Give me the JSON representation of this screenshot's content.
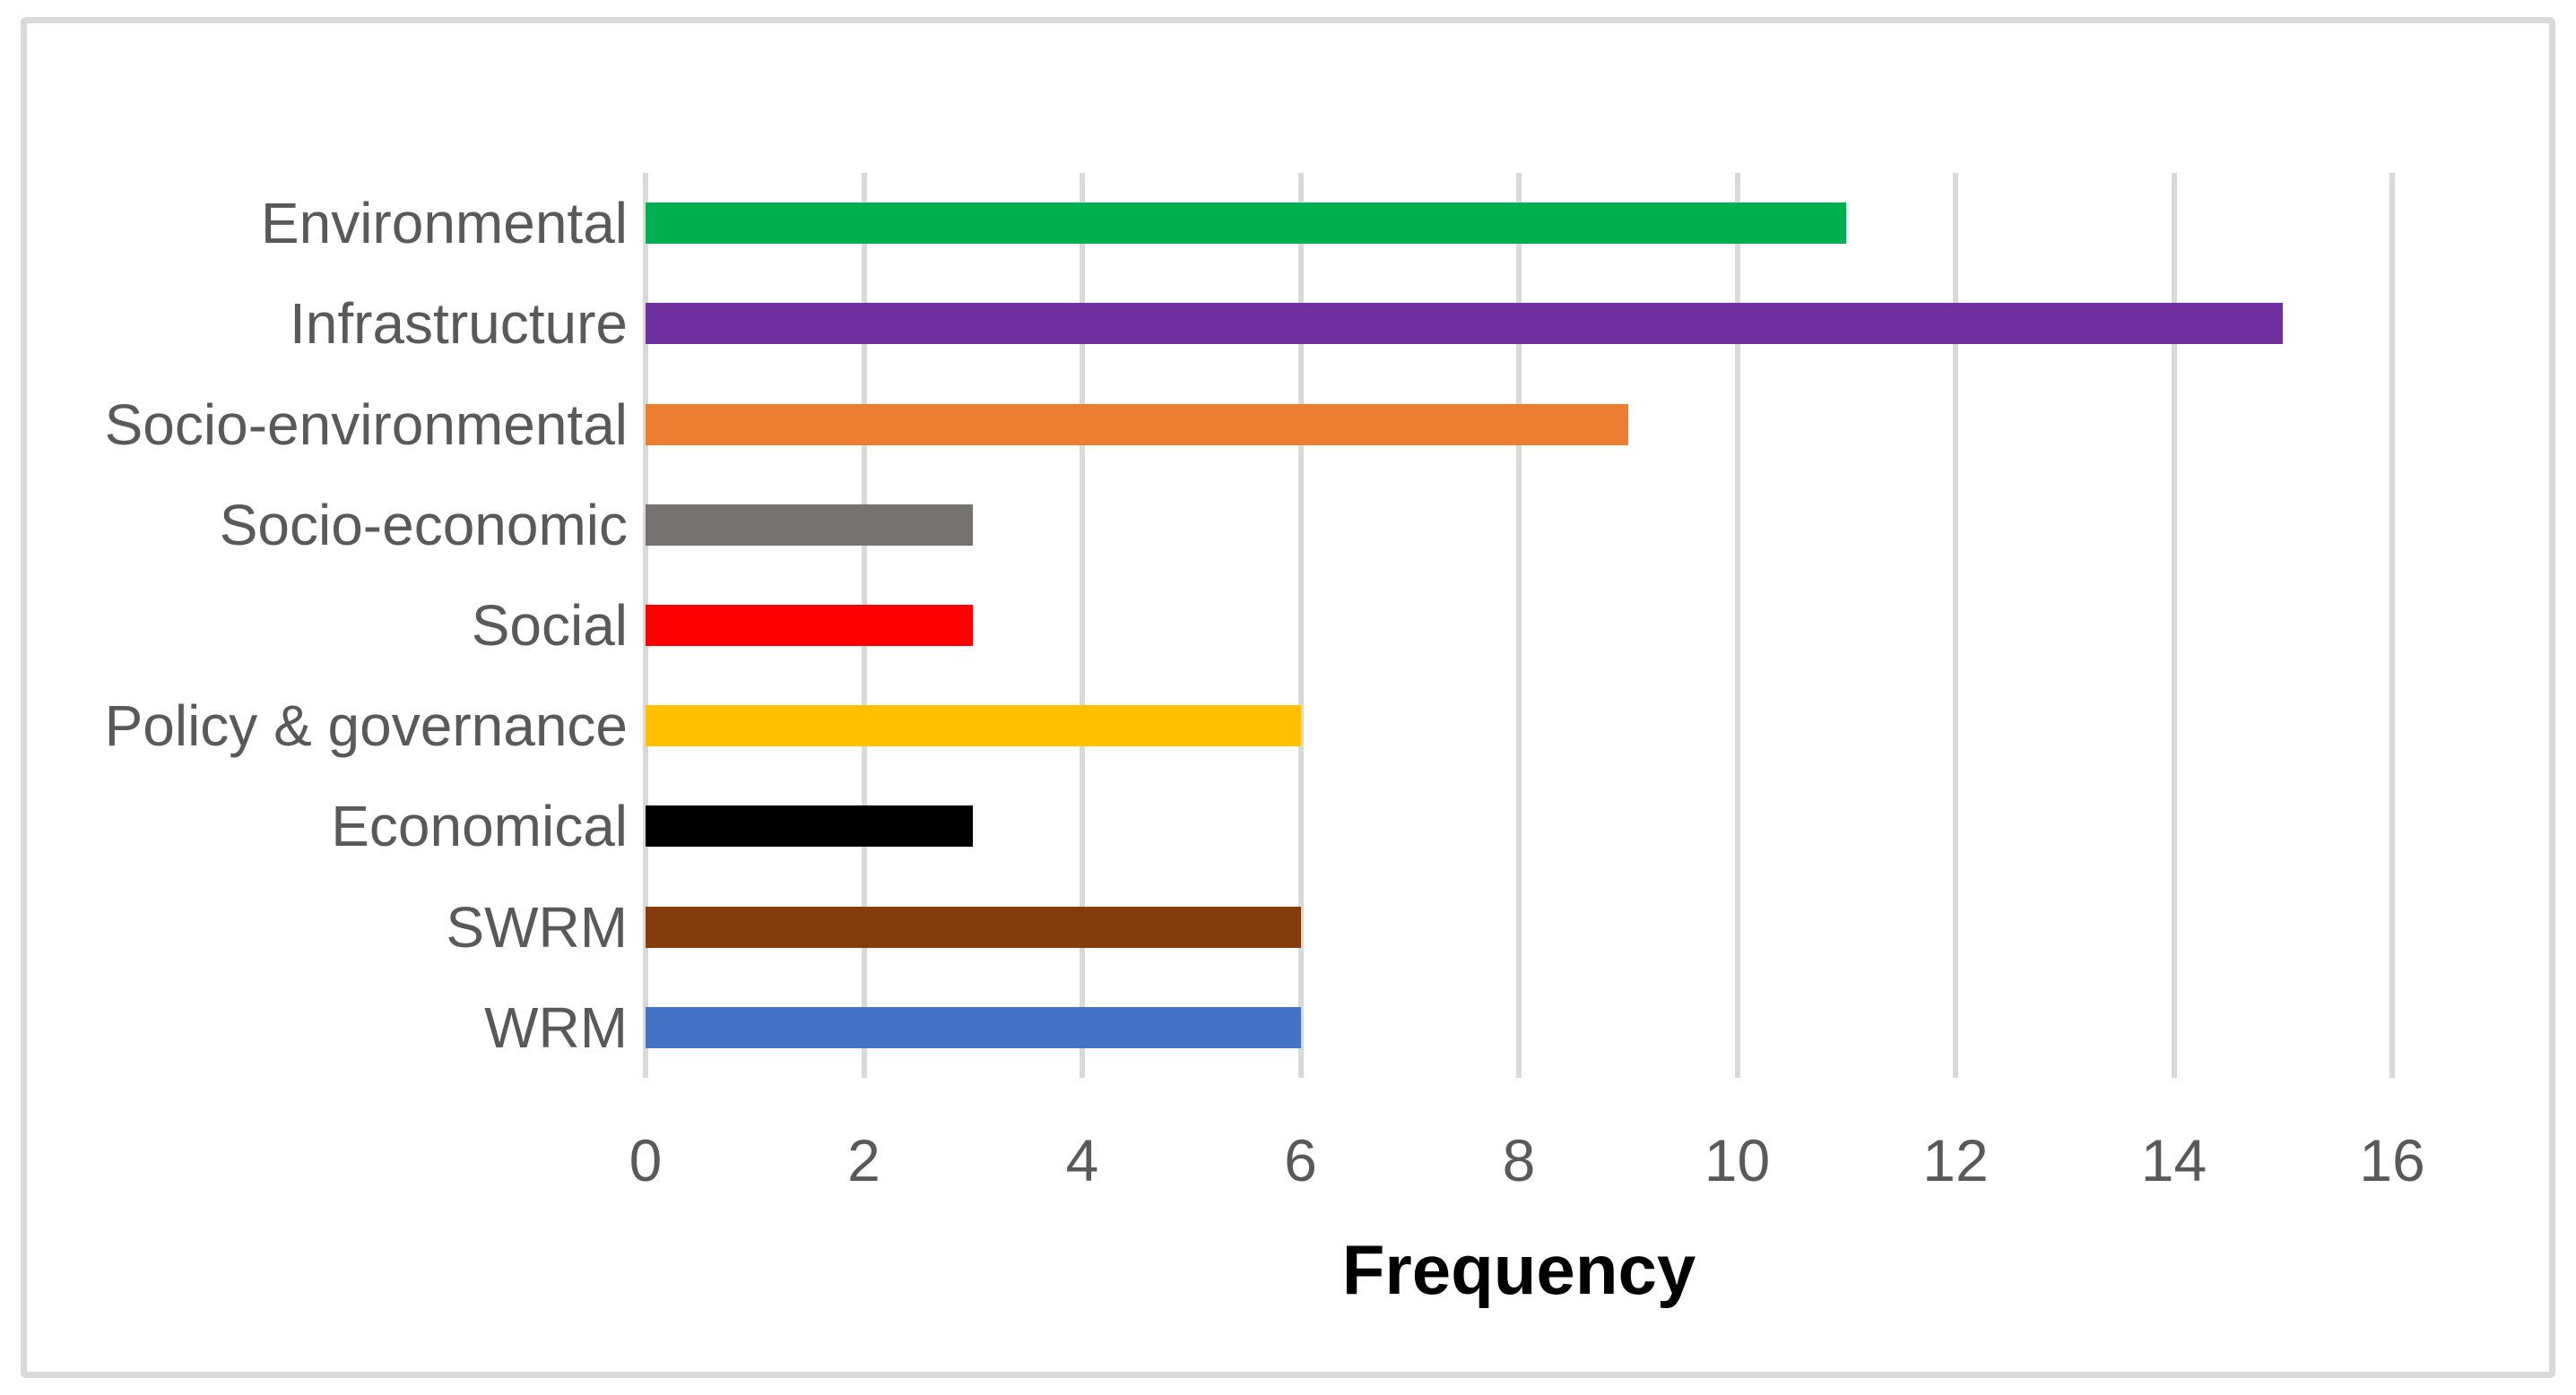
{
  "chart_data": {
    "type": "bar",
    "orientation": "horizontal",
    "title": "",
    "xlabel": "Frequency",
    "ylabel": "",
    "categories": [
      "Environmental",
      "Infrastructure",
      "Socio-environmental",
      "Socio-economic",
      "Social",
      "Policy & governance",
      "Economical",
      "SWRM",
      "WRM"
    ],
    "values": [
      11,
      15,
      9,
      3,
      3,
      6,
      3,
      6,
      6
    ],
    "bar_colors": [
      "#00B050",
      "#7030A0",
      "#ED7D31",
      "#767171",
      "#FF0000",
      "#FFC000",
      "#000000",
      "#843C0C",
      "#4472C4"
    ],
    "xlim": [
      0,
      16
    ],
    "xticks": [
      0,
      2,
      4,
      6,
      8,
      10,
      12,
      14,
      16
    ],
    "grid": "vertical-on",
    "legend": "none",
    "styles": {
      "gridline_color": "#D9D9D9",
      "frame_border_color": "#D9D9D9",
      "tick_label_color": "#595959",
      "category_label_color": "#595959",
      "axis_title_color": "#000000",
      "background": "#FFFFFF"
    }
  }
}
